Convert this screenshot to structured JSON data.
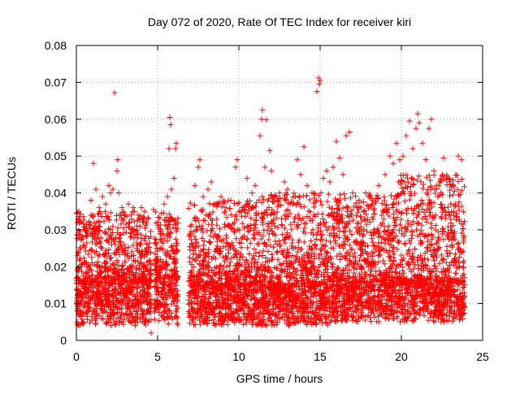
{
  "chart_data": {
    "type": "scatter",
    "title": "Day 072 of 2020, Rate Of TEC Index for receiver kiri",
    "xlabel": "GPS time / hours",
    "ylabel": "ROTI / TECUs",
    "xlim": [
      0,
      25
    ],
    "ylim": [
      0,
      0.08
    ],
    "x_ticks": [
      0,
      5,
      10,
      15,
      20,
      25
    ],
    "x_tick_labels": [
      "0",
      "5",
      "10",
      "15",
      "20",
      "25"
    ],
    "y_ticks": [
      0,
      0.01,
      0.02,
      0.03,
      0.04,
      0.05,
      0.06,
      0.07,
      0.08
    ],
    "y_tick_labels": [
      "0",
      "0.01",
      "0.02",
      "0.03",
      "0.04",
      "0.05",
      "0.06",
      "0.07",
      "0.08"
    ],
    "grid": true,
    "marker": "+",
    "marker_color": "#ff0000",
    "series": [
      {
        "name": "ROTI",
        "dense_segments": [
          {
            "x_range": [
              0.0,
              4.6
            ],
            "y_min": 0.004,
            "y_median": 0.016,
            "y_max": 0.035
          },
          {
            "x_range": [
              4.8,
              6.25
            ],
            "y_min": 0.004,
            "y_median": 0.017,
            "y_max": 0.035
          },
          {
            "x_range": [
              6.9,
              11.2
            ],
            "y_min": 0.004,
            "y_median": 0.015,
            "y_max": 0.038
          },
          {
            "x_range": [
              11.2,
              15.6
            ],
            "y_min": 0.004,
            "y_median": 0.015,
            "y_max": 0.04
          },
          {
            "x_range": [
              15.6,
              19.6
            ],
            "y_min": 0.005,
            "y_median": 0.016,
            "y_max": 0.04
          },
          {
            "x_range": [
              19.6,
              23.9
            ],
            "y_min": 0.005,
            "y_median": 0.016,
            "y_max": 0.045
          }
        ],
        "points": [
          [
            0.05,
            0.008
          ],
          [
            0.1,
            0.024
          ],
          [
            0.15,
            0.035
          ],
          [
            0.3,
            0.032
          ],
          [
            0.5,
            0.021
          ],
          [
            0.7,
            0.029
          ],
          [
            0.9,
            0.038
          ],
          [
            1.0,
            0.034
          ],
          [
            1.05,
            0.048
          ],
          [
            1.2,
            0.041
          ],
          [
            1.4,
            0.036
          ],
          [
            1.6,
            0.039
          ],
          [
            1.8,
            0.037
          ],
          [
            2.0,
            0.042
          ],
          [
            2.1,
            0.04
          ],
          [
            2.25,
            0.041
          ],
          [
            2.35,
            0.0672
          ],
          [
            2.5,
            0.046
          ],
          [
            2.55,
            0.049
          ],
          [
            2.6,
            0.04
          ],
          [
            2.8,
            0.036
          ],
          [
            3.0,
            0.034
          ],
          [
            3.2,
            0.037
          ],
          [
            3.5,
            0.036
          ],
          [
            3.8,
            0.034
          ],
          [
            4.0,
            0.036
          ],
          [
            4.2,
            0.035
          ],
          [
            4.4,
            0.033
          ],
          [
            4.6,
            0.002
          ],
          [
            4.75,
            0.0355
          ],
          [
            4.9,
            0.026
          ],
          [
            5.2,
            0.029
          ],
          [
            5.4,
            0.037
          ],
          [
            5.6,
            0.039
          ],
          [
            5.7,
            0.052
          ],
          [
            5.75,
            0.0605
          ],
          [
            5.8,
            0.0585
          ],
          [
            5.85,
            0.041
          ],
          [
            6.0,
            0.044
          ],
          [
            6.1,
            0.052
          ],
          [
            6.15,
            0.0535
          ],
          [
            7.0,
            0.031
          ],
          [
            7.3,
            0.042
          ],
          [
            7.5,
            0.047
          ],
          [
            7.6,
            0.049
          ],
          [
            7.8,
            0.039
          ],
          [
            8.1,
            0.041
          ],
          [
            8.3,
            0.043
          ],
          [
            8.6,
            0.037
          ],
          [
            8.9,
            0.039
          ],
          [
            9.2,
            0.036
          ],
          [
            9.5,
            0.038
          ],
          [
            9.8,
            0.047
          ],
          [
            9.9,
            0.049
          ],
          [
            10.2,
            0.036
          ],
          [
            10.5,
            0.044
          ],
          [
            10.8,
            0.04
          ],
          [
            11.0,
            0.042
          ],
          [
            11.3,
            0.0555
          ],
          [
            11.4,
            0.06
          ],
          [
            11.45,
            0.0625
          ],
          [
            11.6,
            0.047
          ],
          [
            11.7,
            0.0598
          ],
          [
            11.9,
            0.0515
          ],
          [
            12.0,
            0.046
          ],
          [
            12.2,
            0.039
          ],
          [
            12.5,
            0.04
          ],
          [
            12.8,
            0.043
          ],
          [
            13.0,
            0.041
          ],
          [
            13.3,
            0.037
          ],
          [
            13.6,
            0.049
          ],
          [
            13.8,
            0.045
          ],
          [
            14.0,
            0.0525
          ],
          [
            14.2,
            0.042
          ],
          [
            14.5,
            0.04
          ],
          [
            14.8,
            0.0675
          ],
          [
            14.9,
            0.0712
          ],
          [
            14.95,
            0.0695
          ],
          [
            15.0,
            0.0705
          ],
          [
            15.2,
            0.044
          ],
          [
            15.4,
            0.046
          ],
          [
            15.6,
            0.043
          ],
          [
            15.8,
            0.047
          ],
          [
            16.0,
            0.054
          ],
          [
            16.2,
            0.0495
          ],
          [
            16.4,
            0.045
          ],
          [
            16.6,
            0.0555
          ],
          [
            16.8,
            0.0565
          ],
          [
            17.0,
            0.04
          ],
          [
            17.4,
            0.038
          ],
          [
            17.8,
            0.04
          ],
          [
            18.2,
            0.038
          ],
          [
            18.6,
            0.042
          ],
          [
            19.0,
            0.045
          ],
          [
            19.3,
            0.05
          ],
          [
            19.5,
            0.048
          ],
          [
            19.7,
            0.0535
          ],
          [
            19.9,
            0.049
          ],
          [
            20.1,
            0.05
          ],
          [
            20.3,
            0.0555
          ],
          [
            20.5,
            0.0595
          ],
          [
            20.7,
            0.052
          ],
          [
            20.9,
            0.0575
          ],
          [
            21.0,
            0.0615
          ],
          [
            21.1,
            0.059
          ],
          [
            21.3,
            0.0535
          ],
          [
            21.5,
            0.049
          ],
          [
            21.7,
            0.0575
          ],
          [
            21.85,
            0.06
          ],
          [
            22.0,
            0.046
          ],
          [
            22.3,
            0.042
          ],
          [
            22.6,
            0.0495
          ],
          [
            22.9,
            0.044
          ],
          [
            23.2,
            0.042
          ],
          [
            23.5,
            0.05
          ],
          [
            23.7,
            0.049
          ],
          [
            23.9,
            0.012
          ]
        ]
      }
    ]
  }
}
